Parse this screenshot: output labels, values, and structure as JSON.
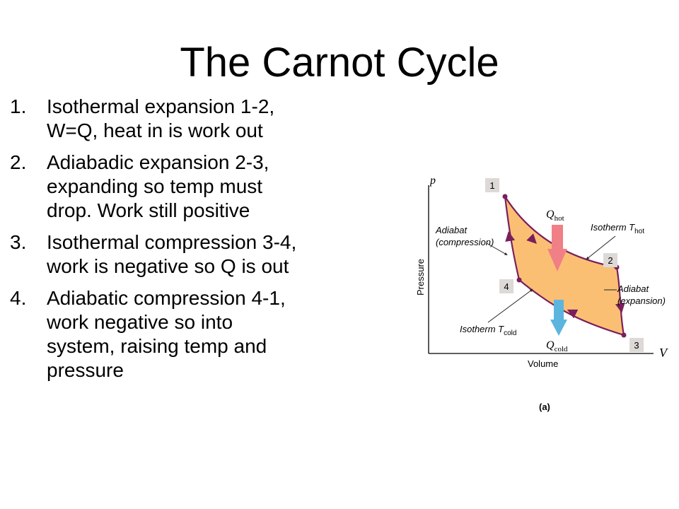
{
  "slide": {
    "title": "The Carnot Cycle",
    "points": [
      {
        "num": "1.",
        "lines": [
          "Isothermal expansion 1-2,",
          "W=Q, heat in is work out"
        ]
      },
      {
        "num": "2.",
        "lines": [
          "Adiabadic expansion 2-3,",
          "expanding so temp must",
          "drop. Work still positive"
        ]
      },
      {
        "num": "3.",
        "lines": [
          "Isothermal compression 3-4,",
          "work is negative so Q is out"
        ]
      },
      {
        "num": "4.",
        "lines": [
          "Adiabatic compression 4-1,",
          "work negative so into",
          "system, raising temp and",
          "pressure"
        ]
      }
    ]
  },
  "diagram": {
    "axis_p": "p",
    "axis_v": "V",
    "ylabel": "Pressure",
    "xlabel": "Volume",
    "points": [
      "1",
      "2",
      "3",
      "4"
    ],
    "q_hot": {
      "main": "Q",
      "sub": "hot"
    },
    "q_cold": {
      "main": "Q",
      "sub": "cold"
    },
    "isotherm_hot": {
      "main": "Isotherm T",
      "sub": "hot"
    },
    "isotherm_cold": {
      "main": "Isotherm T",
      "sub": "cold"
    },
    "adiabat_left": [
      "Adiabat",
      "(compression)"
    ],
    "adiabat_right": [
      "Adiabat",
      "(expansion)"
    ],
    "caption": "(a)",
    "colors": {
      "cycle_fill": "#fbbf74",
      "cycle_stroke": "#7a1f5c",
      "hot_arrow": "#f07f86",
      "cold_arrow": "#5cb5de",
      "label_box": "#ddd9d6"
    }
  }
}
